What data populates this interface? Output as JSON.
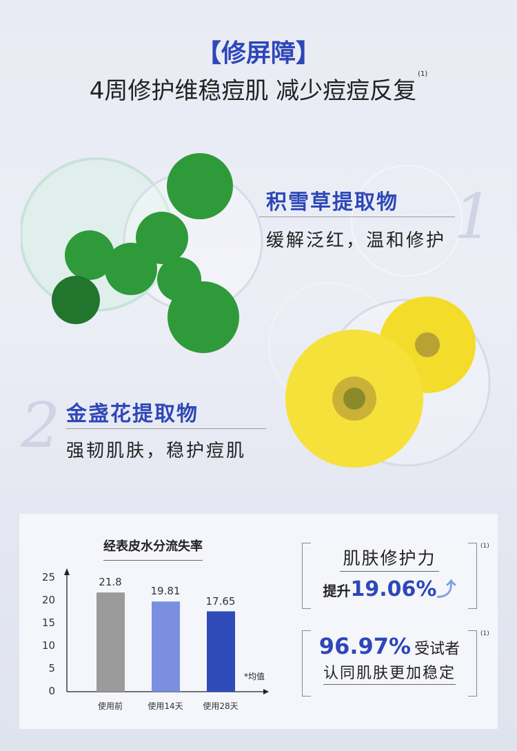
{
  "header": {
    "title": "【修屏障】",
    "subtitle": "4周修护维稳痘肌 减少痘痘反复",
    "subtitle_note": "(1)"
  },
  "ingredients": [
    {
      "number": "1",
      "name": "积雪草提取物",
      "desc": "缓解泛红，温和修护"
    },
    {
      "number": "2",
      "name": "金盏花提取物",
      "desc": "强韧肌肤，稳护痘肌"
    }
  ],
  "chart_data": {
    "type": "bar",
    "title": "经表皮水分流失率",
    "categories": [
      "使用前",
      "使用14天",
      "使用28天"
    ],
    "values": [
      21.8,
      19.81,
      17.65
    ],
    "value_labels": [
      "21.8",
      "19.81",
      "17.65"
    ],
    "colors": [
      "#9b9b9b",
      "#7b8fe0",
      "#2f4bb8"
    ],
    "ylim": [
      0,
      25
    ],
    "yticks": [
      "0",
      "5",
      "10",
      "15",
      "20",
      "25"
    ],
    "annotation": "*均值",
    "grid": false
  },
  "stats": [
    {
      "title": "肌肤修护力",
      "prefix": "提升",
      "value": "19.06%",
      "note": "(1)"
    },
    {
      "value": "96.97%",
      "suffix": "受试者",
      "text": "认同肌肤更加稳定",
      "note": "(1)"
    }
  ]
}
